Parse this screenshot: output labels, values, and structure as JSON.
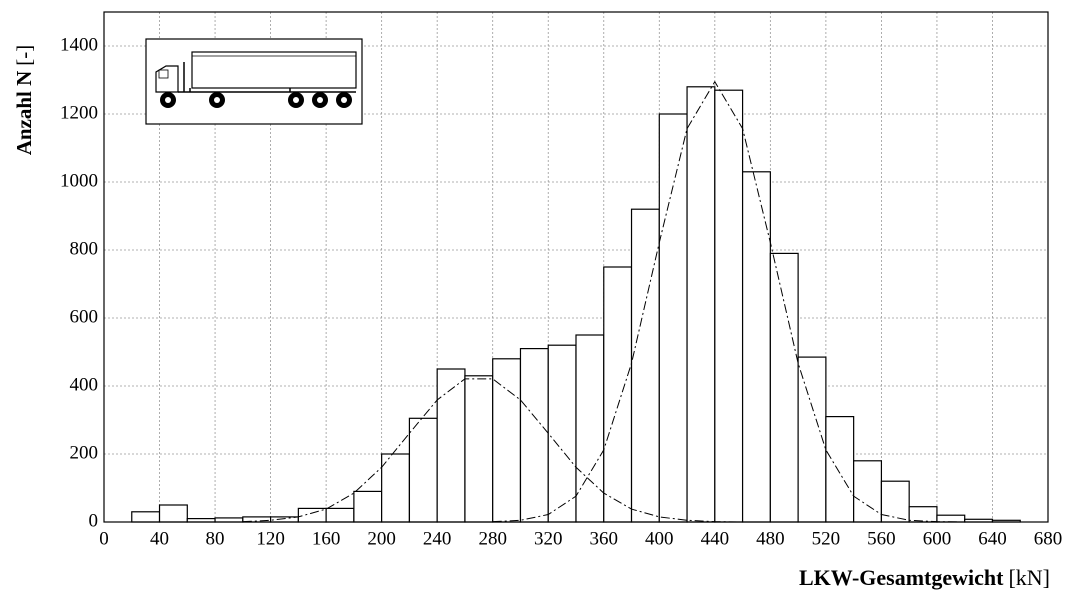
{
  "chart_data": {
    "type": "histogram",
    "x_label": {
      "name": "LKW-Gesamtgewicht",
      "unit": "[kN]"
    },
    "y_label": {
      "name": "Anzahl N",
      "unit": "[-]"
    },
    "bins": [
      20,
      40,
      60,
      80,
      100,
      120,
      140,
      160,
      180,
      200,
      220,
      240,
      260,
      280,
      300,
      320,
      340,
      360,
      380,
      400,
      420,
      440,
      460,
      480,
      500,
      520,
      540,
      560,
      580,
      600,
      620,
      640,
      660
    ],
    "counts": [
      30,
      50,
      10,
      12,
      15,
      15,
      40,
      40,
      90,
      200,
      305,
      450,
      430,
      480,
      510,
      520,
      550,
      750,
      920,
      1200,
      1280,
      1270,
      1030,
      790,
      485,
      310,
      180,
      120,
      45,
      20,
      8,
      5
    ],
    "curves": [
      {
        "x": [
          100,
          120,
          140,
          160,
          180,
          200,
          220,
          240,
          260,
          280,
          300,
          320,
          340,
          360,
          380,
          400,
          420,
          440,
          460
        ],
        "values": [
          1,
          5,
          15,
          38,
          85,
          161,
          261,
          359,
          421,
          421,
          359,
          261,
          161,
          85,
          38,
          15,
          5,
          1,
          0
        ]
      },
      {
        "x": [
          280,
          300,
          320,
          340,
          360,
          380,
          400,
          420,
          440,
          460,
          480,
          500,
          520,
          540,
          560,
          580,
          600,
          620
        ],
        "values": [
          1,
          5,
          22,
          76,
          212,
          467,
          822,
          1157,
          1295,
          1157,
          822,
          467,
          212,
          76,
          22,
          5,
          1,
          0
        ]
      }
    ],
    "xlim": [
      0,
      680
    ],
    "xticks": [
      0,
      40,
      80,
      120,
      160,
      200,
      240,
      280,
      320,
      360,
      400,
      440,
      480,
      520,
      560,
      600,
      640,
      680
    ],
    "ylim": [
      0,
      1500
    ],
    "yticks": [
      0,
      200,
      400,
      600,
      800,
      1000,
      1200,
      1400
    ],
    "grid": true,
    "color": "#ffffff"
  }
}
